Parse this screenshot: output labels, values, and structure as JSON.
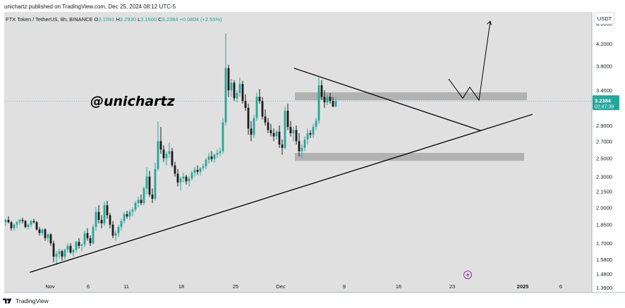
{
  "header": {
    "published_by": "unichartz published on TradingView.com, Dec 25, 2024 08:12 UTC-5"
  },
  "legend": {
    "symbol": "FTX Token / TetherUS, 8h, BINANCE",
    "o_label": "O",
    "o_value": "3.1591",
    "h_label": "H",
    "h_value": "3.2930",
    "l_label": "L",
    "l_value": "3.1500",
    "c_label": "C",
    "c_value": "3.2384",
    "change": "+0.0804 (+2.55%)"
  },
  "watermark": "@unichartz",
  "currency_button": "USDT",
  "price_tag": {
    "price": "3.2384",
    "countdown": "02:47:39"
  },
  "footer": {
    "brand": "TradingView"
  },
  "colors": {
    "up": "#26a69a",
    "down": "#1b1b1b",
    "zone": "#a9a9a9",
    "pane": "#e0e0e0",
    "price_tag": "#26a69a"
  },
  "chart_data": {
    "type": "candlestick",
    "scale": "log",
    "y_ticks": [
      "4.6000",
      "4.2000",
      "3.8000",
      "3.4000",
      "2.9000",
      "2.7000",
      "2.5000",
      "2.3000",
      "2.1500",
      "2.0000",
      "1.8500",
      "1.7000",
      "1.5800",
      "1.4800",
      "1.3900"
    ],
    "x_ticks": [
      "Nov",
      "6",
      "11",
      "18",
      "25",
      "Dec",
      "9",
      "16",
      "23",
      "2025",
      "6"
    ],
    "ylim": [
      1.36,
      4.85
    ],
    "support_zones": [
      [
        3.25,
        3.37
      ],
      [
        2.47,
        2.56
      ]
    ],
    "trendlines": [
      {
        "name": "support",
        "from": [
          "Nov 3",
          1.49
        ],
        "to": [
          "Jan 1",
          3.05
        ]
      },
      {
        "name": "resistance",
        "from": [
          "Dec 4",
          3.76
        ],
        "to": [
          "Dec 26",
          2.83
        ]
      }
    ],
    "projection": [
      [
        "Dec 23",
        3.58
      ],
      [
        "Dec 25",
        3.28
      ],
      [
        "Dec 25",
        3.45
      ],
      [
        "Dec 26",
        3.25
      ],
      [
        "Dec 28",
        4.65
      ]
    ],
    "candles": [
      [
        1.87,
        1.9,
        1.84,
        1.89
      ],
      [
        1.89,
        1.92,
        1.86,
        1.87
      ],
      [
        1.87,
        1.88,
        1.8,
        1.82
      ],
      [
        1.82,
        1.86,
        1.8,
        1.85
      ],
      [
        1.85,
        1.88,
        1.82,
        1.87
      ],
      [
        1.87,
        1.9,
        1.85,
        1.89
      ],
      [
        1.89,
        1.91,
        1.86,
        1.88
      ],
      [
        1.88,
        1.89,
        1.82,
        1.83
      ],
      [
        1.83,
        1.86,
        1.81,
        1.85
      ],
      [
        1.85,
        1.89,
        1.83,
        1.88
      ],
      [
        1.88,
        1.9,
        1.86,
        1.87
      ],
      [
        1.87,
        1.88,
        1.8,
        1.81
      ],
      [
        1.81,
        1.83,
        1.76,
        1.78
      ],
      [
        1.78,
        1.82,
        1.76,
        1.81
      ],
      [
        1.81,
        1.82,
        1.72,
        1.74
      ],
      [
        1.74,
        1.78,
        1.71,
        1.77
      ],
      [
        1.77,
        1.78,
        1.68,
        1.7
      ],
      [
        1.7,
        1.72,
        1.56,
        1.6
      ],
      [
        1.6,
        1.64,
        1.54,
        1.62
      ],
      [
        1.62,
        1.66,
        1.59,
        1.64
      ],
      [
        1.64,
        1.65,
        1.57,
        1.6
      ],
      [
        1.6,
        1.66,
        1.58,
        1.65
      ],
      [
        1.65,
        1.7,
        1.63,
        1.68
      ],
      [
        1.68,
        1.7,
        1.62,
        1.63
      ],
      [
        1.63,
        1.66,
        1.6,
        1.65
      ],
      [
        1.65,
        1.72,
        1.63,
        1.71
      ],
      [
        1.71,
        1.74,
        1.66,
        1.68
      ],
      [
        1.68,
        1.7,
        1.64,
        1.69
      ],
      [
        1.69,
        1.8,
        1.67,
        1.78
      ],
      [
        1.78,
        1.82,
        1.72,
        1.74
      ],
      [
        1.74,
        1.76,
        1.68,
        1.7
      ],
      [
        1.7,
        1.85,
        1.69,
        1.83
      ],
      [
        1.83,
        2.0,
        1.8,
        1.96
      ],
      [
        1.96,
        2.02,
        1.86,
        1.89
      ],
      [
        1.89,
        1.93,
        1.82,
        1.86
      ],
      [
        1.86,
        2.05,
        1.84,
        2.02
      ],
      [
        2.02,
        2.06,
        1.9,
        1.93
      ],
      [
        1.93,
        1.95,
        1.82,
        1.85
      ],
      [
        1.85,
        1.88,
        1.74,
        1.76
      ],
      [
        1.76,
        1.8,
        1.72,
        1.78
      ],
      [
        1.78,
        1.85,
        1.75,
        1.83
      ],
      [
        1.83,
        1.9,
        1.8,
        1.88
      ],
      [
        1.88,
        1.96,
        1.86,
        1.94
      ],
      [
        1.94,
        1.97,
        1.9,
        1.92
      ],
      [
        1.92,
        1.98,
        1.89,
        1.96
      ],
      [
        1.96,
        2.0,
        1.92,
        1.98
      ],
      [
        1.98,
        2.06,
        1.96,
        2.04
      ],
      [
        2.04,
        2.1,
        2.0,
        2.07
      ],
      [
        2.07,
        2.12,
        2.02,
        2.04
      ],
      [
        2.04,
        2.2,
        2.02,
        2.18
      ],
      [
        2.18,
        2.4,
        2.12,
        2.3
      ],
      [
        2.3,
        2.36,
        2.1,
        2.12
      ],
      [
        2.12,
        2.18,
        2.04,
        2.08
      ],
      [
        2.08,
        2.45,
        2.06,
        2.38
      ],
      [
        2.38,
        2.95,
        2.36,
        2.7
      ],
      [
        2.7,
        2.88,
        2.55,
        2.6
      ],
      [
        2.6,
        2.65,
        2.46,
        2.5
      ],
      [
        2.5,
        2.58,
        2.42,
        2.55
      ],
      [
        2.55,
        2.68,
        2.5,
        2.58
      ],
      [
        2.58,
        2.62,
        2.4,
        2.42
      ],
      [
        2.42,
        2.46,
        2.3,
        2.33
      ],
      [
        2.33,
        2.38,
        2.2,
        2.24
      ],
      [
        2.24,
        2.3,
        2.16,
        2.28
      ],
      [
        2.28,
        2.34,
        2.24,
        2.3
      ],
      [
        2.3,
        2.32,
        2.22,
        2.25
      ],
      [
        2.25,
        2.3,
        2.2,
        2.28
      ],
      [
        2.28,
        2.36,
        2.26,
        2.34
      ],
      [
        2.34,
        2.4,
        2.3,
        2.37
      ],
      [
        2.37,
        2.42,
        2.32,
        2.35
      ],
      [
        2.35,
        2.4,
        2.31,
        2.39
      ],
      [
        2.39,
        2.44,
        2.36,
        2.41
      ],
      [
        2.41,
        2.5,
        2.38,
        2.48
      ],
      [
        2.48,
        2.56,
        2.44,
        2.52
      ],
      [
        2.52,
        2.58,
        2.46,
        2.49
      ],
      [
        2.49,
        2.55,
        2.45,
        2.54
      ],
      [
        2.54,
        2.6,
        2.5,
        2.56
      ],
      [
        2.56,
        2.62,
        2.52,
        2.58
      ],
      [
        2.58,
        3.0,
        2.55,
        2.94
      ],
      [
        2.94,
        4.4,
        2.9,
        3.76
      ],
      [
        3.76,
        3.82,
        3.3,
        3.4
      ],
      [
        3.4,
        3.58,
        3.3,
        3.52
      ],
      [
        3.52,
        3.56,
        3.24,
        3.28
      ],
      [
        3.28,
        3.4,
        3.22,
        3.36
      ],
      [
        3.36,
        3.6,
        3.3,
        3.5
      ],
      [
        3.5,
        3.55,
        3.2,
        3.24
      ],
      [
        3.24,
        3.34,
        3.1,
        3.14
      ],
      [
        3.14,
        3.2,
        2.78,
        2.86
      ],
      [
        2.86,
        2.96,
        2.7,
        2.78
      ],
      [
        2.78,
        3.04,
        2.74,
        3.0
      ],
      [
        3.0,
        3.36,
        2.96,
        3.3
      ],
      [
        3.3,
        3.42,
        3.2,
        3.24
      ],
      [
        3.24,
        3.3,
        2.98,
        3.02
      ],
      [
        3.02,
        3.12,
        2.9,
        2.94
      ],
      [
        2.94,
        3.0,
        2.8,
        2.84
      ],
      [
        2.84,
        2.92,
        2.76,
        2.8
      ],
      [
        2.8,
        2.86,
        2.7,
        2.76
      ],
      [
        2.76,
        2.84,
        2.72,
        2.82
      ],
      [
        2.82,
        2.9,
        2.62,
        2.66
      ],
      [
        2.66,
        2.72,
        2.54,
        2.62
      ],
      [
        2.62,
        3.16,
        2.6,
        3.1
      ],
      [
        3.1,
        3.2,
        2.84,
        2.88
      ],
      [
        2.88,
        2.96,
        2.76,
        2.8
      ],
      [
        2.8,
        2.88,
        2.7,
        2.84
      ],
      [
        2.84,
        2.9,
        2.66,
        2.7
      ],
      [
        2.7,
        2.8,
        2.52,
        2.58
      ],
      [
        2.58,
        2.66,
        2.5,
        2.62
      ],
      [
        2.62,
        2.76,
        2.58,
        2.72
      ],
      [
        2.72,
        2.86,
        2.66,
        2.8
      ],
      [
        2.8,
        2.84,
        2.74,
        2.78
      ],
      [
        2.78,
        2.92,
        2.74,
        2.88
      ],
      [
        2.88,
        3.0,
        2.84,
        2.96
      ],
      [
        2.96,
        3.6,
        2.92,
        3.48
      ],
      [
        3.48,
        3.56,
        3.26,
        3.3
      ],
      [
        3.3,
        3.4,
        3.14,
        3.22
      ],
      [
        3.22,
        3.34,
        3.18,
        3.3
      ],
      [
        3.3,
        3.36,
        3.2,
        3.24
      ],
      [
        3.24,
        3.3,
        3.15,
        3.16
      ],
      [
        3.16,
        3.29,
        3.15,
        3.24
      ]
    ]
  }
}
